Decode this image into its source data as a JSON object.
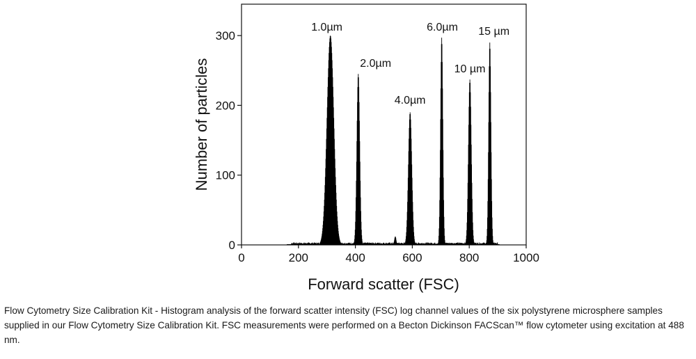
{
  "chart_data": {
    "type": "histogram",
    "xlabel": "Forward scatter (FSC)",
    "ylabel": "Number of particles",
    "xlim": [
      0,
      1000
    ],
    "ylim": [
      0,
      345
    ],
    "x_ticks": [
      "0",
      "200",
      "400",
      "600",
      "800",
      "1000"
    ],
    "x_tick_values": [
      0,
      200,
      400,
      600,
      800,
      1000
    ],
    "y_ticks": [
      "0",
      "100",
      "200",
      "300"
    ],
    "y_tick_values": [
      0,
      100,
      200,
      300
    ],
    "grid": false,
    "legend": "none",
    "color": "#000000",
    "peaks": [
      {
        "label": "1.0µm",
        "center": 312,
        "height": 300,
        "width": 12
      },
      {
        "label": "2.0µm",
        "center": 410,
        "height": 245,
        "width": 5
      },
      {
        "label": "4.0µm",
        "center": 592,
        "height": 190,
        "width": 6
      },
      {
        "label": "6.0µm",
        "center": 703,
        "height": 297,
        "width": 4
      },
      {
        "label": "10 µm",
        "center": 802,
        "height": 237,
        "width": 5
      },
      {
        "label": "15 µm",
        "center": 872,
        "height": 290,
        "width": 4
      }
    ],
    "minor_peaks": [
      {
        "center": 540,
        "height": 12,
        "width": 3
      }
    ]
  },
  "caption": "Flow Cytometry Size Calibration Kit - Histogram analysis of the forward scatter intensity (FSC) log channel values of the six polystyrene microsphere samples supplied in our Flow Cytometry Size Calibration Kit. FSC measurements were performed on a Becton Dickinson FACScan™ flow cytometer using excitation at 488 nm."
}
